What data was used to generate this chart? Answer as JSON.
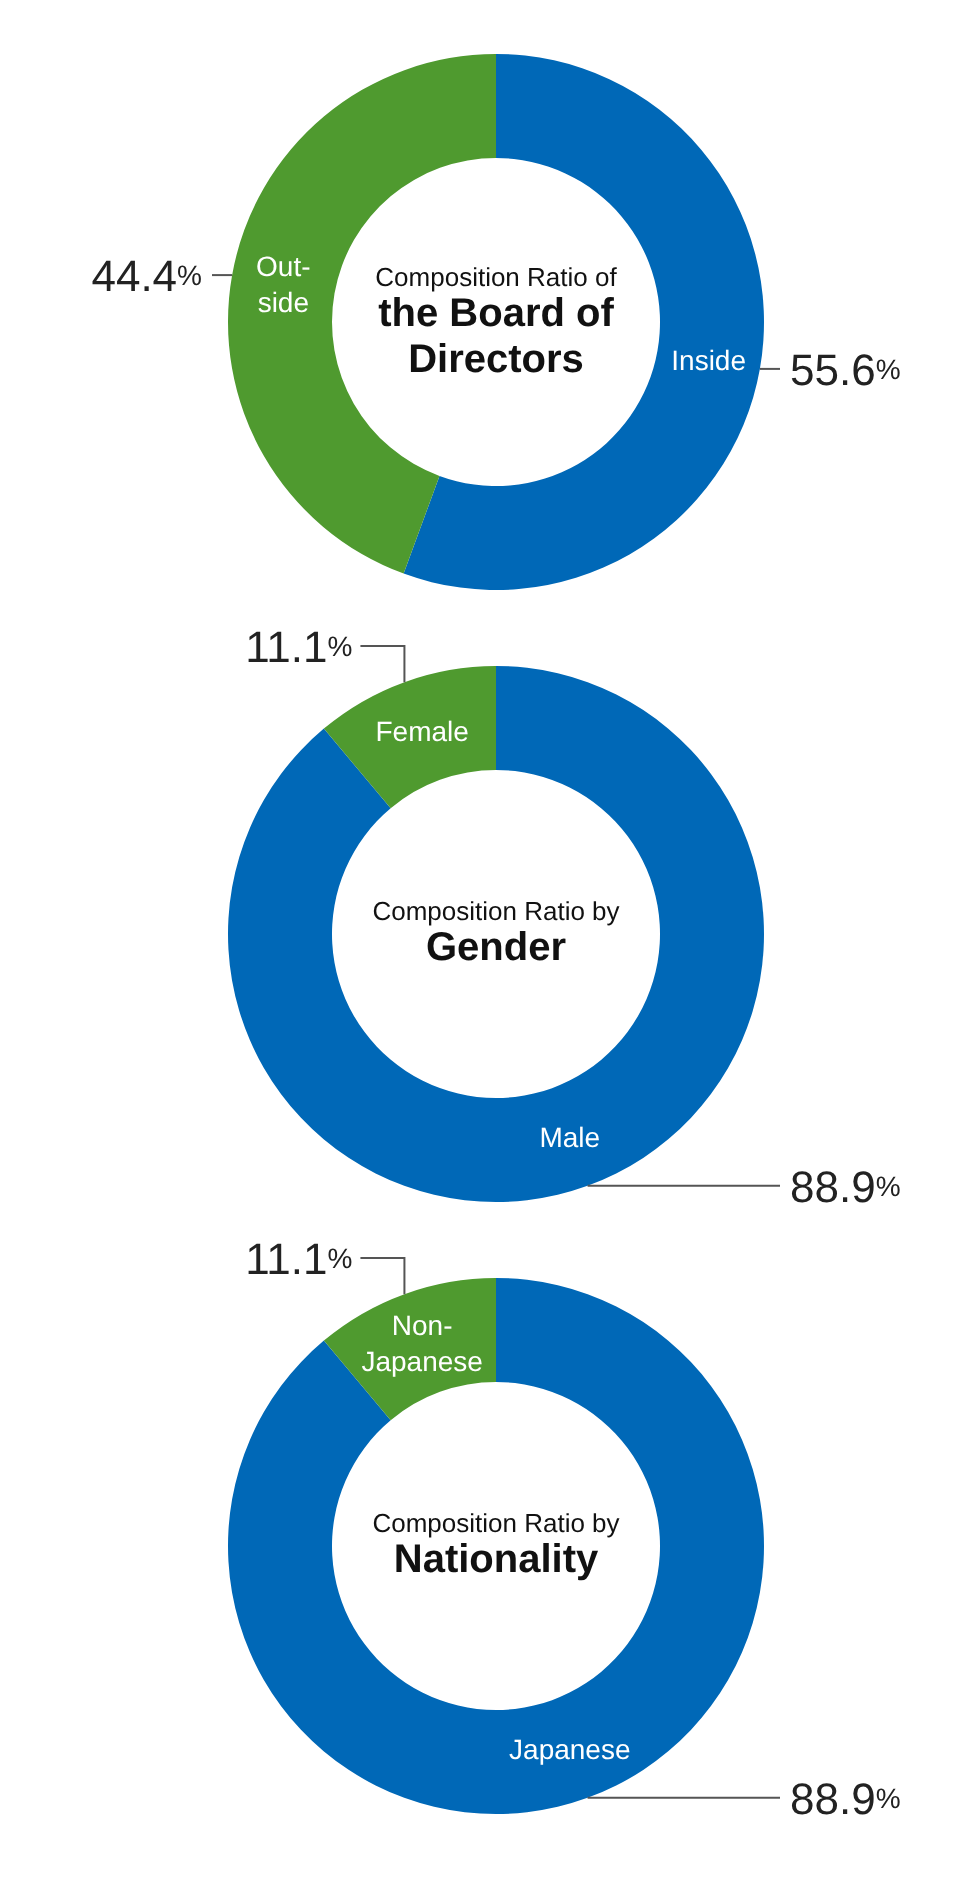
{
  "chart_data": [
    {
      "type": "donut",
      "title": "Composition Ratio of",
      "subtitle": "the Board of Directors",
      "categories": [
        "Inside",
        "Out-\nside"
      ],
      "values": [
        55.6,
        44.4
      ],
      "value_labels": [
        "55.6%",
        "44.4%"
      ],
      "colors": [
        "#0068b7",
        "#4f9a2f"
      ]
    },
    {
      "type": "donut",
      "title": "Composition Ratio by",
      "subtitle": "Gender",
      "categories": [
        "Male",
        "Female"
      ],
      "values": [
        88.9,
        11.1
      ],
      "value_labels": [
        "88.9%",
        "11.1%"
      ],
      "colors": [
        "#0068b7",
        "#4f9a2f"
      ]
    },
    {
      "type": "donut",
      "title": "Composition Ratio by",
      "subtitle": "Nationality",
      "categories": [
        "Japanese",
        "Non-\nJapanese"
      ],
      "values": [
        88.9,
        11.1
      ],
      "value_labels": [
        "88.9%",
        "11.1%"
      ],
      "colors": [
        "#0068b7",
        "#4f9a2f"
      ]
    }
  ]
}
